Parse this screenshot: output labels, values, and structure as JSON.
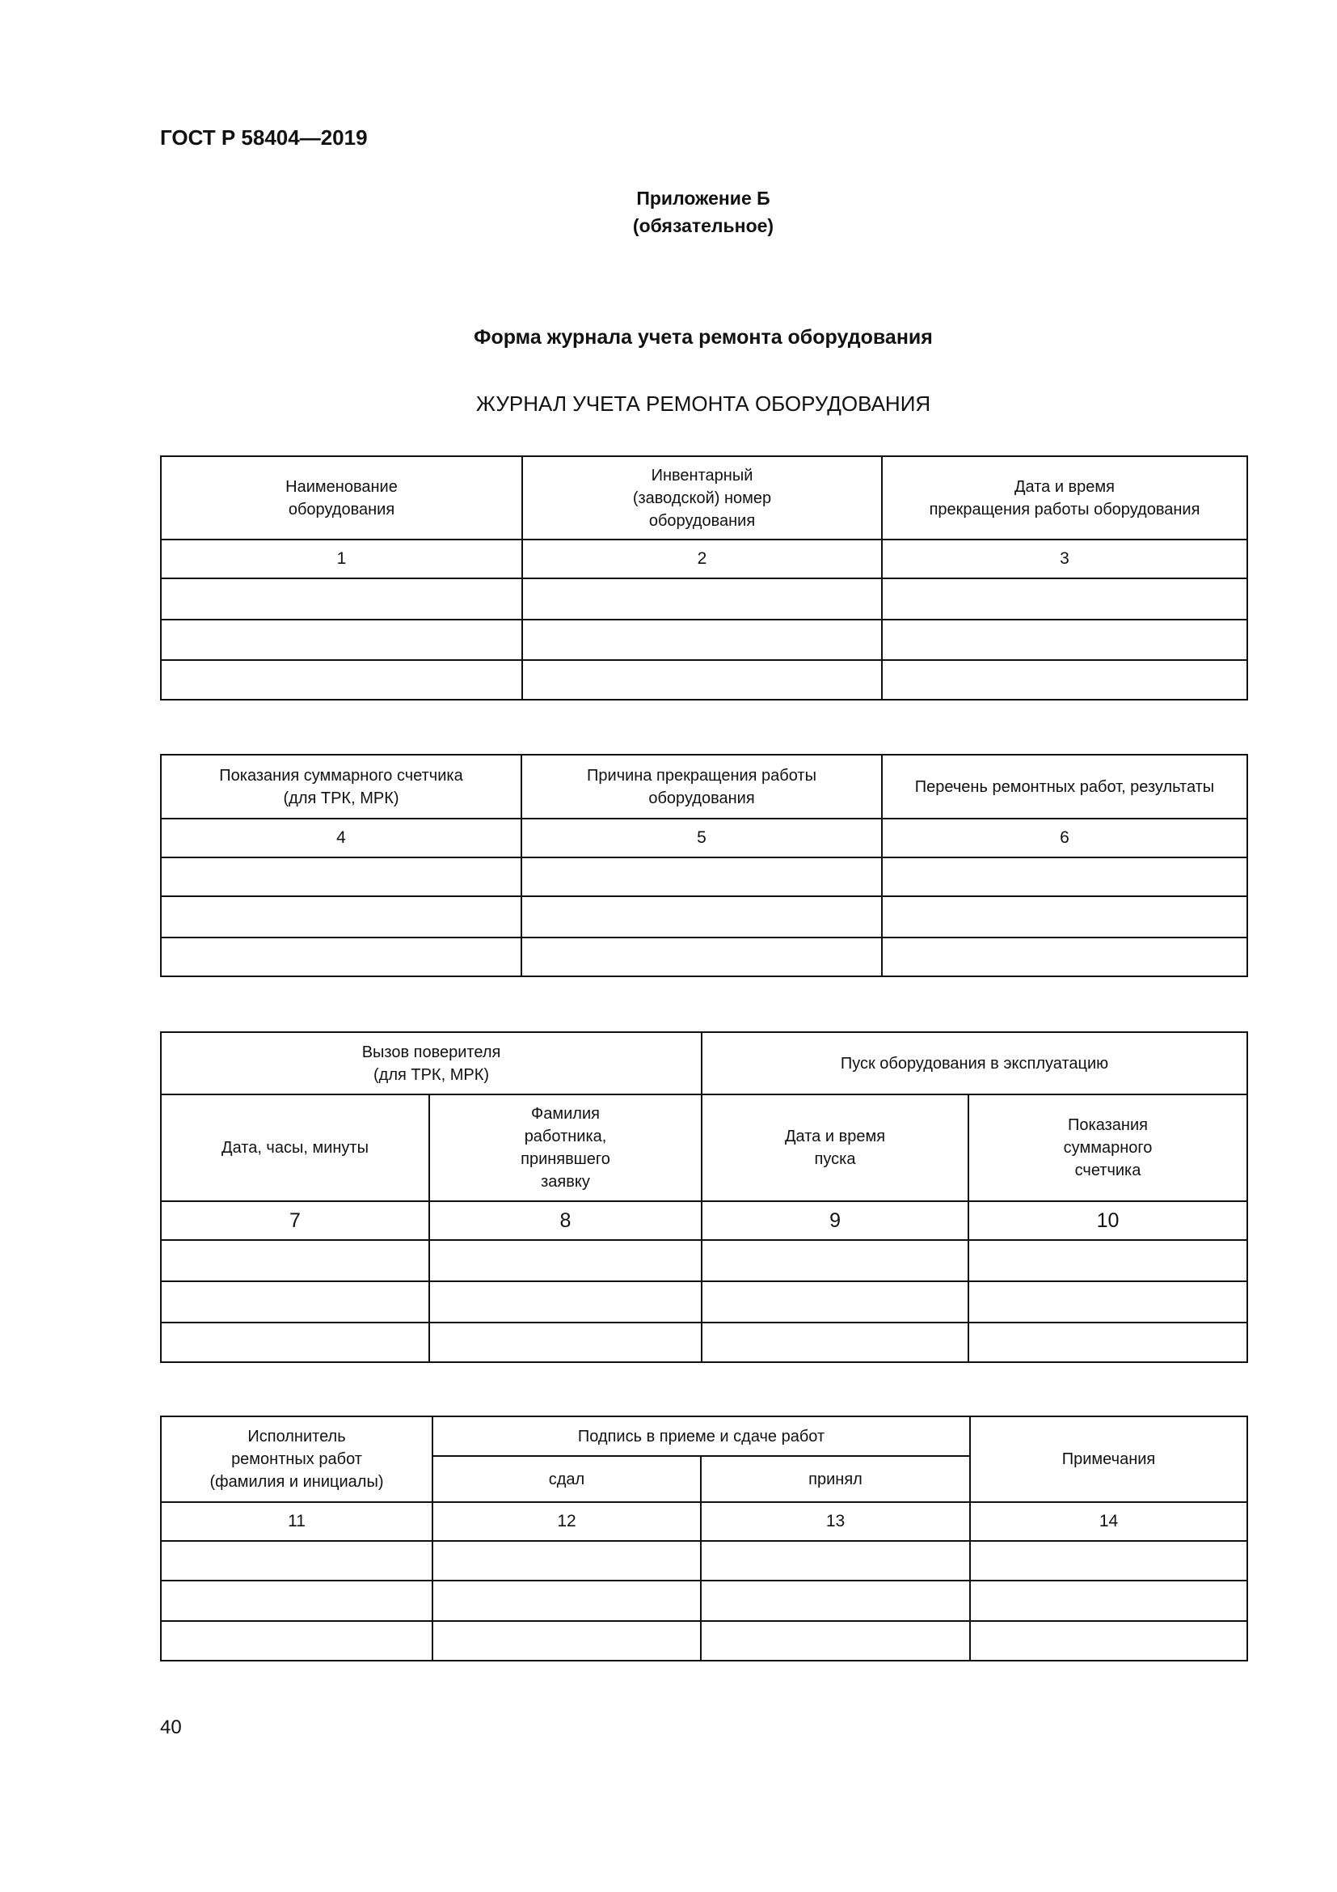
{
  "header": {
    "standard": "ГОСТ Р 58404—2019",
    "appendix": "Приложение Б",
    "appendix_status": "(обязательное)"
  },
  "form_title": "Форма журнала учета ремонта оборудования",
  "journal_title": "ЖУРНАЛ УЧЕТА РЕМОНТА ОБОРУДОВАНИЯ",
  "table1": {
    "headers": [
      "Наименование\nоборудования",
      "Инвентарный\n(заводской) номер\nоборудования",
      "Дата и время\nпрекращения работы оборудования"
    ],
    "numbers": [
      "1",
      "2",
      "3"
    ]
  },
  "table2": {
    "headers": [
      "Показания суммарного счетчика\n(для ТРК, МРК)",
      "Причина прекращения работы\nоборудования",
      "Перечень ремонтных работ, результаты"
    ],
    "numbers": [
      "4",
      "5",
      "6"
    ]
  },
  "table3": {
    "group1": "Вызов поверителя\n(для ТРК, МРК)",
    "group2": "Пуск оборудования в эксплуатацию",
    "headers": [
      "Дата, часы, минуты",
      "Фамилия\nработника,\nпринявшего\nзаявку",
      "Дата и время\nпуска",
      "Показания\nсуммарного\nсчетчика"
    ],
    "numbers": [
      "7",
      "8",
      "9",
      "10"
    ]
  },
  "table4": {
    "executor": "Исполнитель\nремонтных работ\n(фамилия и инициалы)",
    "signature": "Подпись в приеме и сдаче работ",
    "handed": "сдал",
    "accepted": "принял",
    "notes": "Примечания",
    "numbers": [
      "11",
      "12",
      "13",
      "14"
    ]
  },
  "page_number": "40"
}
